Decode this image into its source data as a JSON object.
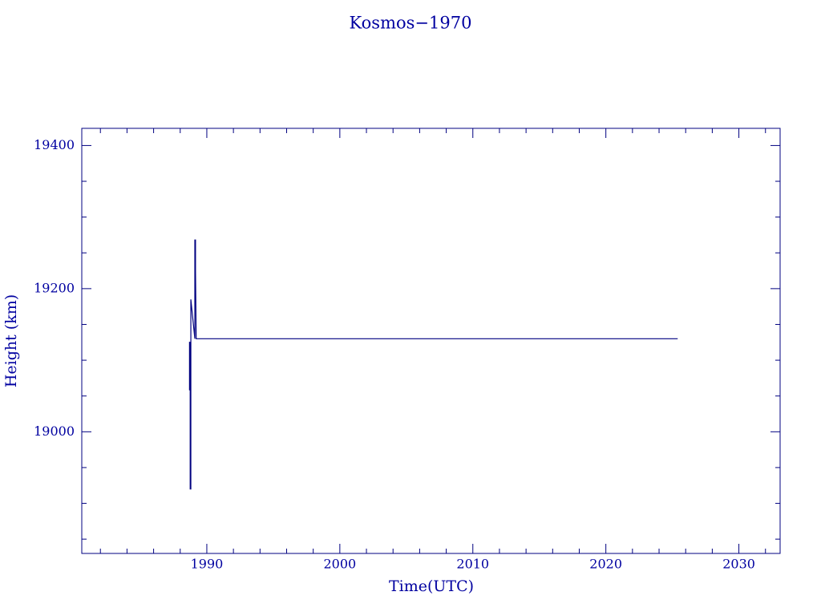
{
  "chart_data": {
    "type": "line",
    "title": "Kosmos−1970",
    "x_label": "Time(UTC)",
    "y_label": "Height (km)",
    "x": [
      1988.7,
      1988.7,
      1988.75,
      1988.75,
      1988.8,
      1988.8,
      1989.1,
      1989.1,
      1989.15,
      1989.15,
      1989.2,
      2025.4
    ],
    "series": [
      {
        "name": "Kosmos−1970",
        "color": "#000080",
        "values": [
          19058,
          19125,
          19125,
          18920,
          18920,
          19185,
          19130,
          19268,
          19268,
          19225,
          19130,
          19130
        ]
      }
    ],
    "xlim": [
      1980.6,
      2033.1
    ],
    "xticks": [
      1990,
      2000,
      2010,
      2020,
      2030
    ],
    "xminorticks": [
      1982,
      1984,
      1986,
      1988,
      1992,
      1994,
      1996,
      1998,
      2002,
      2004,
      2006,
      2008,
      2012,
      2014,
      2016,
      2018,
      2022,
      2024,
      2026,
      2028,
      2032
    ],
    "ylim": [
      18830,
      19424
    ],
    "yticks": [
      19000,
      19200,
      19400
    ],
    "yminorticks": [
      18850,
      18900,
      18950,
      19050,
      19100,
      19150,
      19250,
      19300,
      19350
    ],
    "grid": false
  }
}
